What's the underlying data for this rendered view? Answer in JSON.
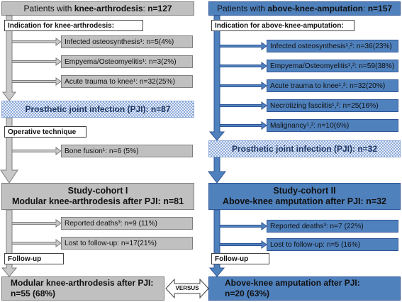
{
  "colors": {
    "left_box": "#c0c0c0",
    "right_box": "#4f81bd",
    "pji_text": "#1f3864",
    "pji_check_dark": "#8eaadb",
    "pji_check_light": "#e9eff8"
  },
  "left": {
    "header": {
      "prefix": "Patients with ",
      "group": "knee-arthrodesis",
      "separator": ": ",
      "count": "n=127"
    },
    "indication_label": "Indication for knee-arthrodesis:",
    "indications": [
      "Infected osteosynthesis¹: n=5(4%)",
      "Empyema/Osteomyelitis¹: n=3(2%)",
      "Acute trauma to knee¹: n=32(25%)"
    ],
    "pji": "Prosthetic joint infection (PJI): n=87",
    "operative_label": "Operative technique",
    "operative_exclusions": [
      "Bone fusion¹: n=6 (5%)"
    ],
    "cohort": {
      "title": "Study-cohort I",
      "subtitle": "Modular knee-arthrodesis after PJI: n=81"
    },
    "follow_up_losses": [
      "Reported deaths³: n=9 (11%)",
      "Lost to follow-up: n=17(21%)"
    ],
    "follow_up_label": "Follow-up",
    "outcome": {
      "line1": "Modular knee-arthrodesis after PJI:",
      "line2": "n=55 (68%)"
    }
  },
  "right": {
    "header": {
      "prefix": "Patients with ",
      "group": "above-knee-amputation",
      "separator": ": ",
      "count": "n=157"
    },
    "indication_label": "Indication for above-knee-amputation:",
    "indications": [
      "Infected osteosynthesis¹,²: n=36(23%)",
      "Empyema/Osteomyelitis¹,²: n=59(38%)",
      "Acute trauma to knee¹,²: n=32(20%)",
      "Necrotizing fasciitis¹,²: n=25(16%)",
      "Malignancy¹,²: n=10(6%)"
    ],
    "pji": "Prosthetic joint infection (PJI): n=32",
    "cohort": {
      "title": "Study-cohort II",
      "subtitle": "Above-knee amputation after PJI: n=32"
    },
    "follow_up_losses": [
      "Reported deaths³: n=7 (22%)",
      "Lost to follow-up: n=5 (16%)"
    ],
    "follow_up_label": "Follow-up",
    "outcome": {
      "line1": "Above-knee amputation after PJI:",
      "line2": "n=20 (63%)"
    }
  },
  "versus": "VERSUS"
}
